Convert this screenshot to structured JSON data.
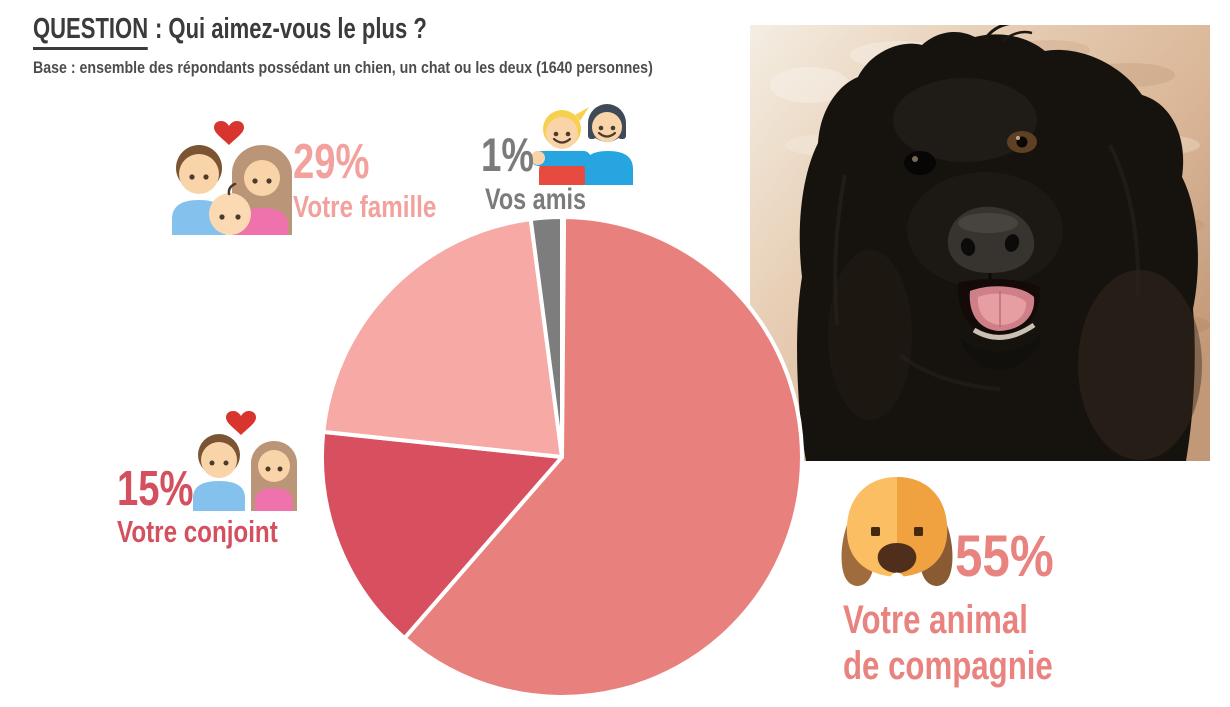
{
  "header": {
    "title_word": "QUESTION",
    "title_rest": ": Qui aimez-vous le plus ?",
    "subtitle": "Base : ensemble des répondants possédant un chien, un chat ou les deux (1640 personnes)"
  },
  "chart_data": {
    "type": "pie",
    "title": "Qui aimez-vous le plus ?",
    "sample_size": 1640,
    "legend_position": "callouts-around-pie",
    "separator_color": "#ffffff",
    "slices": [
      {
        "id": "animal",
        "label": "Votre animal de compagnie",
        "value_pct": 55,
        "color": "#e8817d",
        "start_deg": 0.5,
        "end_deg": 221
      },
      {
        "id": "conjoint",
        "label": "Votre conjoint",
        "value_pct": 15,
        "color": "#d85060",
        "start_deg": 221,
        "end_deg": 276
      },
      {
        "id": "famille",
        "label": "Votre famille",
        "value_pct": 29,
        "color": "#f6a9a5",
        "start_deg": 276,
        "end_deg": 352.5
      },
      {
        "id": "amis",
        "label": "Vos amis",
        "value_pct": 1,
        "color": "#7d7d7d",
        "start_deg": 352.5,
        "end_deg": 360
      }
    ]
  },
  "callouts": {
    "famille": {
      "pct": "29%",
      "label": "Votre famille",
      "color": "#f2a19d",
      "icon": "family-icon"
    },
    "amis": {
      "pct": "1%",
      "label": "Vos amis",
      "color": "#7b7b7b",
      "icon": "friends-icon"
    },
    "conjoint": {
      "pct": "15%",
      "label": "Votre conjoint",
      "color": "#d4505e",
      "icon": "couple-icon"
    },
    "animal": {
      "pct": "55%",
      "label_line1": "Votre animal",
      "label_line2": "de compagnie",
      "color": "#e8837f",
      "icon": "dog-icon"
    }
  },
  "photo": {
    "icon": "black-dog-photo",
    "wall_color": "#ddb99c",
    "dog_color": "#16130f"
  }
}
